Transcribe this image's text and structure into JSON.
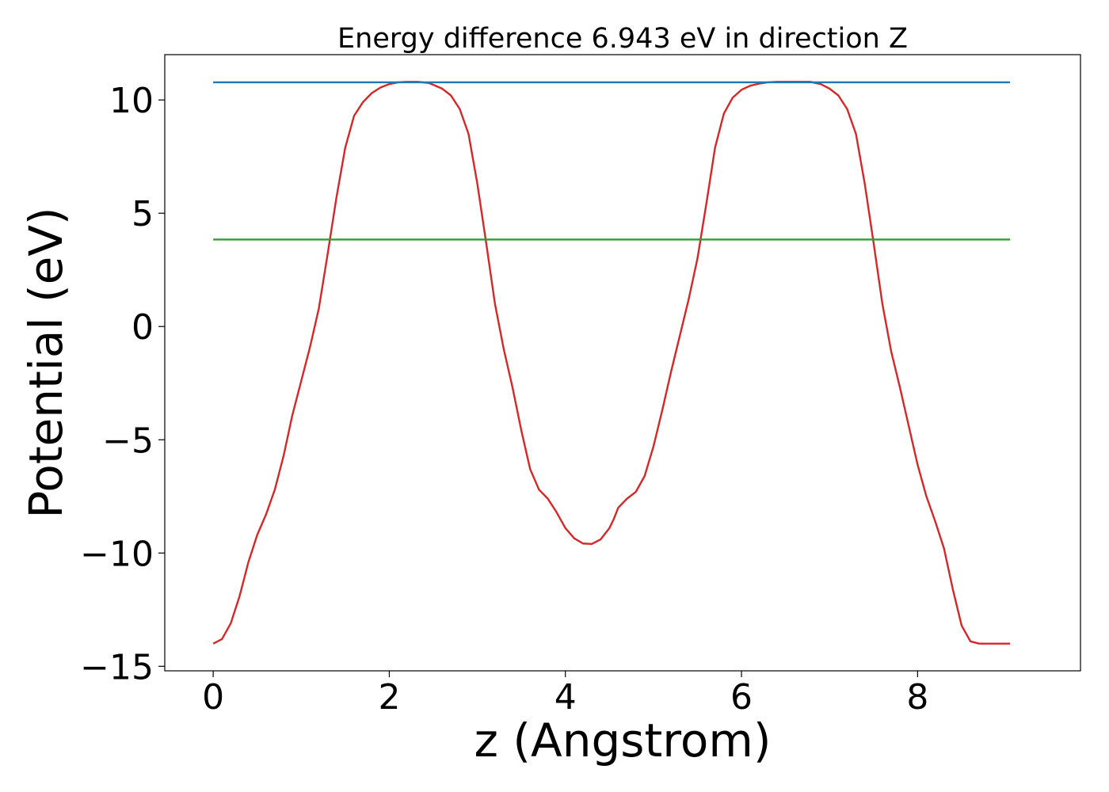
{
  "chart_data": {
    "type": "line",
    "title": "Energy difference 6.943 eV in direction Z",
    "xlabel": "z (Angstrom)",
    "ylabel": "Potential (eV)",
    "xlim": [
      -0.55,
      9.85
    ],
    "ylim": [
      -15.2,
      12.0
    ],
    "xticks": [
      0,
      2,
      4,
      6,
      8
    ],
    "yticks": [
      -15,
      -10,
      -5,
      0,
      5,
      10
    ],
    "ytick_labels": [
      "−15",
      "−10",
      "−5",
      "0",
      "5",
      "10"
    ],
    "grid": false,
    "legend": "none",
    "series": [
      {
        "color": "#d62728",
        "x": [
          0.0,
          0.1,
          0.2,
          0.3,
          0.4,
          0.5,
          0.6,
          0.7,
          0.8,
          0.9,
          1.0,
          1.1,
          1.2,
          1.3,
          1.4,
          1.5,
          1.6,
          1.7,
          1.8,
          1.9,
          2.0,
          2.1,
          2.2,
          2.32,
          2.45,
          2.6,
          2.7,
          2.8,
          2.9,
          3.0,
          3.1,
          3.2,
          3.3,
          3.4,
          3.5,
          3.6,
          3.7,
          3.8,
          3.9,
          4.0,
          4.1,
          4.2,
          4.3,
          4.4,
          4.5,
          4.55,
          4.6,
          4.7,
          4.8,
          4.9,
          5.0,
          5.1,
          5.2,
          5.3,
          5.4,
          5.5,
          5.6,
          5.7,
          5.8,
          5.9,
          6.0,
          6.1,
          6.2,
          6.3,
          6.4,
          6.5,
          6.6,
          6.78,
          6.9,
          7.0,
          7.1,
          7.2,
          7.3,
          7.4,
          7.5,
          7.6,
          7.7,
          7.8,
          7.9,
          8.0,
          8.1,
          8.2,
          8.3,
          8.4,
          8.5,
          8.6,
          8.7,
          8.8,
          8.9,
          9.0,
          9.05
        ],
        "y": [
          -14.0,
          -13.8,
          -13.1,
          -11.9,
          -10.4,
          -9.2,
          -8.3,
          -7.2,
          -5.7,
          -3.9,
          -2.4,
          -0.9,
          0.8,
          3.2,
          5.7,
          7.9,
          9.3,
          9.9,
          10.3,
          10.55,
          10.7,
          10.78,
          10.8,
          10.8,
          10.75,
          10.5,
          10.2,
          9.6,
          8.5,
          6.3,
          3.7,
          1.0,
          -1.0,
          -2.7,
          -4.6,
          -6.3,
          -7.2,
          -7.6,
          -8.2,
          -8.9,
          -9.35,
          -9.58,
          -9.6,
          -9.4,
          -8.9,
          -8.5,
          -8.0,
          -7.6,
          -7.3,
          -6.6,
          -5.3,
          -3.7,
          -2.0,
          -0.4,
          1.2,
          3.0,
          5.4,
          7.9,
          9.4,
          10.1,
          10.45,
          10.63,
          10.72,
          10.78,
          10.8,
          10.8,
          10.8,
          10.8,
          10.7,
          10.5,
          10.2,
          9.6,
          8.5,
          6.3,
          3.7,
          1.0,
          -1.1,
          -2.7,
          -4.4,
          -6.1,
          -7.5,
          -8.6,
          -9.8,
          -11.6,
          -13.2,
          -13.9,
          -14.0,
          -14.0,
          -14.0,
          -14.0,
          -14.0
        ],
        "name": ""
      },
      {
        "color": "#1f77b4",
        "x": [
          0.0,
          9.05
        ],
        "y": [
          10.78,
          10.78
        ],
        "name": ""
      },
      {
        "color": "#2ca02c",
        "x": [
          0.0,
          9.05
        ],
        "y": [
          3.84,
          3.84
        ],
        "name": ""
      }
    ]
  }
}
